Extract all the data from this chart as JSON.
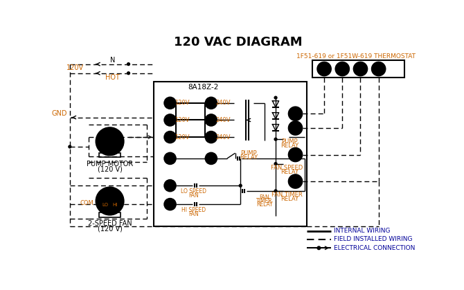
{
  "title": "120 VAC DIAGRAM",
  "bg_color": "#ffffff",
  "line_color": "#000000",
  "orange_color": "#cc6600",
  "thermostat_label": "1F51-619 or 1F51W-619 THERMOSTAT",
  "control_box_label": "8A18Z-2",
  "legend_internal": "INTERNAL WIRING",
  "legend_field": "FIELD INSTALLED WIRING",
  "legend_elec": "ELECTRICAL CONNECTION",
  "legend_color": "#000099"
}
